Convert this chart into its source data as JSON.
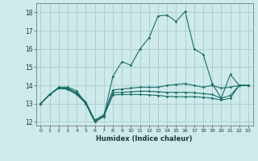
{
  "xlabel": "Humidex (Indice chaleur)",
  "bg_color": "#ceeaea",
  "grid_color": "#aacccc",
  "line_color": "#1a6e6a",
  "xlim": [
    -0.5,
    23.5
  ],
  "ylim": [
    11.8,
    18.5
  ],
  "yticks": [
    12,
    13,
    14,
    15,
    16,
    17,
    18
  ],
  "xticks": [
    0,
    1,
    2,
    3,
    4,
    5,
    6,
    7,
    8,
    9,
    10,
    11,
    12,
    13,
    14,
    15,
    16,
    17,
    18,
    19,
    20,
    21,
    22,
    23
  ],
  "series": [
    [
      13.0,
      13.5,
      13.9,
      13.9,
      13.7,
      13.0,
      12.0,
      12.3,
      14.5,
      15.3,
      15.1,
      16.0,
      16.6,
      17.8,
      17.85,
      17.5,
      18.05,
      16.0,
      15.7,
      14.1,
      13.3,
      14.6,
      14.0,
      14.0
    ],
    [
      13.0,
      13.5,
      13.85,
      13.85,
      13.6,
      13.1,
      12.1,
      12.4,
      13.75,
      13.8,
      13.85,
      13.9,
      13.9,
      13.9,
      14.0,
      14.05,
      14.1,
      14.0,
      13.9,
      14.0,
      13.85,
      13.9,
      14.0,
      14.0
    ],
    [
      13.0,
      13.5,
      13.85,
      13.8,
      13.55,
      13.05,
      12.05,
      12.35,
      13.6,
      13.62,
      13.65,
      13.68,
      13.68,
      13.65,
      13.62,
      13.62,
      13.62,
      13.6,
      13.55,
      13.5,
      13.3,
      13.45,
      14.0,
      14.0
    ],
    [
      13.0,
      13.5,
      13.85,
      13.78,
      13.5,
      13.0,
      12.0,
      12.3,
      13.48,
      13.5,
      13.5,
      13.5,
      13.48,
      13.45,
      13.4,
      13.38,
      13.38,
      13.38,
      13.35,
      13.3,
      13.2,
      13.3,
      14.0,
      14.0
    ]
  ]
}
